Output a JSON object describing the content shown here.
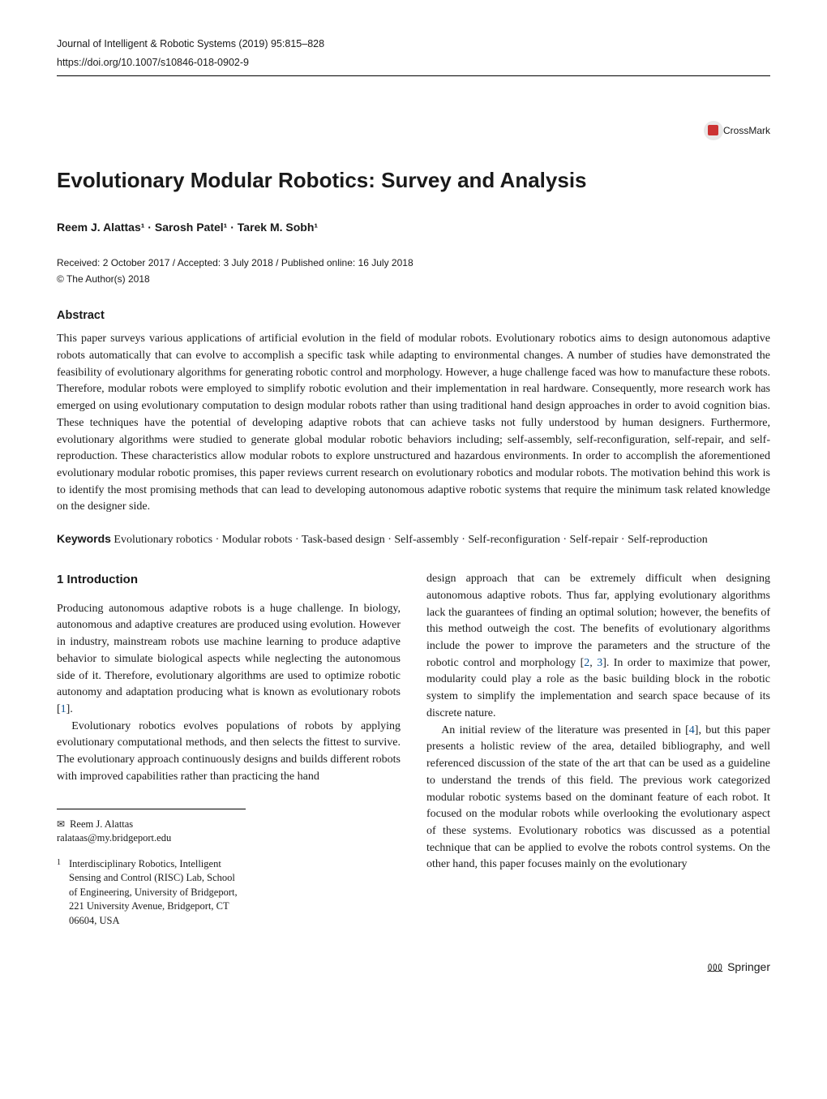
{
  "header": {
    "journal_line": "Journal of Intelligent & Robotic Systems (2019) 95:815–828",
    "doi": "https://doi.org/10.1007/s10846-018-0902-9"
  },
  "crossmark_label": "CrossMark",
  "title": "Evolutionary Modular Robotics: Survey and Analysis",
  "authors_html": "Reem J. Alattas¹ · Sarosh Patel¹ · Tarek M. Sobh¹",
  "pubinfo": "Received: 2 October 2017 / Accepted: 3 July 2018 / Published online: 16 July 2018",
  "copyright": "© The Author(s) 2018",
  "abstract": {
    "heading": "Abstract",
    "text": "This paper surveys various applications of artificial evolution in the field of modular robots. Evolutionary robotics aims to design autonomous adaptive robots automatically that can evolve to accomplish a specific task while adapting to environmental changes. A number of studies have demonstrated the feasibility of evolutionary algorithms for generating robotic control and morphology. However, a huge challenge faced was how to manufacture these robots. Therefore, modular robots were employed to simplify robotic evolution and their implementation in real hardware. Consequently, more research work has emerged on using evolutionary computation to design modular robots rather than using traditional hand design approaches in order to avoid cognition bias. These techniques have the potential of developing adaptive robots that can achieve tasks not fully understood by human designers. Furthermore, evolutionary algorithms were studied to generate global modular robotic behaviors including; self-assembly, self-reconfiguration, self-repair, and self-reproduction. These characteristics allow modular robots to explore unstructured and hazardous environments. In order to accomplish the aforementioned evolutionary modular robotic promises, this paper reviews current research on evolutionary robotics and modular robots. The motivation behind this work is to identify the most promising methods that can lead to developing autonomous adaptive robotic systems that require the minimum task related knowledge on the designer side."
  },
  "keywords": {
    "label": "Keywords",
    "text": "Evolutionary robotics · Modular robots · Task-based design · Self-assembly · Self-reconfiguration · Self-repair · Self-reproduction"
  },
  "intro": {
    "heading": "1 Introduction",
    "left_p1": "Producing autonomous adaptive robots is a huge challenge. In biology, autonomous and adaptive creatures are produced using evolution. However in industry, mainstream robots use machine learning to produce adaptive behavior to simulate biological aspects while neglecting the autonomous side of it. Therefore, evolutionary algorithms are used to optimize robotic autonomy and adaptation producing what is known as evolutionary robots [",
    "cite1": "1",
    "left_p1_end": "].",
    "left_p2": "Evolutionary robotics evolves populations of robots by applying evolutionary computational methods, and then selects the fittest to survive. The evolutionary approach continuously designs and builds different robots with improved capabilities rather than practicing the hand",
    "right_p1a": "design approach that can be extremely difficult when designing autonomous adaptive robots. Thus far, applying evolutionary algorithms lack the guarantees of finding an optimal solution; however, the benefits of this method outweigh the cost. The benefits of evolutionary algorithms include the power to improve the parameters and the structure of the robotic control and morphology [",
    "cite2": "2",
    "cite_sep": ", ",
    "cite3": "3",
    "right_p1b": "]. In order to maximize that power, modularity could play a role as the basic building block in the robotic system to simplify the implementation and search space because of its discrete nature.",
    "right_p2a": "An initial review of the literature was presented in [",
    "cite4": "4",
    "right_p2b": "], but this paper presents a holistic review of the area, detailed bibliography, and well referenced discussion of the state of the art that can be used as a guideline to understand the trends of this field. The previous work categorized modular robotic systems based on the dominant feature of each robot. It focused on the modular robots while overlooking the evolutionary aspect of these systems. Evolutionary robotics was discussed as a potential technique that can be applied to evolve the robots control systems. On the other hand, this paper focuses mainly on the evolutionary"
  },
  "correspondence": {
    "name": "Reem J. Alattas",
    "email": "ralataas@my.bridgeport.edu"
  },
  "affiliation": {
    "num": "1",
    "text": "Interdisciplinary Robotics, Intelligent Sensing and Control (RISC) Lab, School of Engineering, University of Bridgeport, 221 University Avenue, Bridgeport, CT 06604, USA"
  },
  "footer": {
    "publisher": "Springer"
  },
  "colors": {
    "cite_color": "#0b5394",
    "text_color": "#1a1a1a",
    "crossmark_red": "#cc3333"
  }
}
